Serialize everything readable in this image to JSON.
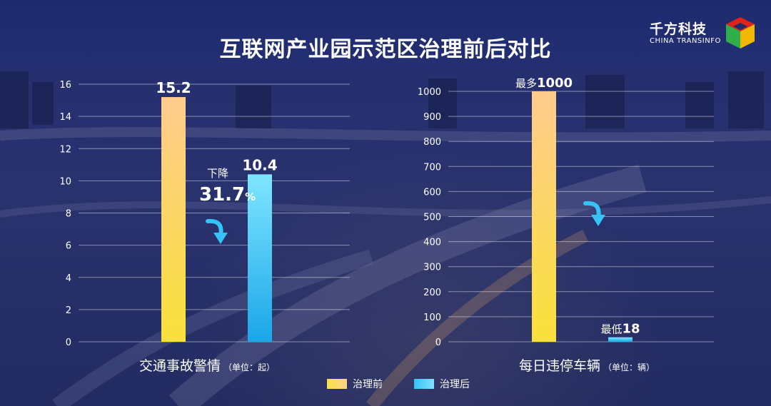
{
  "title": "互联网产业园示范区治理前后对比",
  "logo": {
    "cn": "千方科技",
    "en": "CHINA TRANSINFO"
  },
  "legend": [
    {
      "label": "治理前",
      "color": "#f9e04a"
    },
    {
      "label": "治理后",
      "color": "#35c4f5"
    }
  ],
  "chart_data": [
    {
      "type": "bar",
      "caption": "交通事故警情",
      "unit": "（单位：起）",
      "categories": [
        "治理前",
        "治理后"
      ],
      "values": [
        15.2,
        10.4
      ],
      "value_labels": [
        "15.2",
        "10.4"
      ],
      "ylim": [
        0,
        16
      ],
      "yticks": [
        0,
        2,
        4,
        6,
        8,
        10,
        12,
        14,
        16
      ],
      "grid": true,
      "annotation": {
        "label": "下降",
        "value": "31.7",
        "suffix": "%"
      }
    },
    {
      "type": "bar",
      "caption": "每日违停车辆",
      "unit": "（单位：辆）",
      "categories": [
        "治理前",
        "治理后"
      ],
      "values": [
        1000,
        18
      ],
      "value_labels": [
        "1000",
        "18"
      ],
      "value_prefixes": [
        "最多",
        "最低"
      ],
      "ylim": [
        0,
        1000
      ],
      "yticks": [
        0,
        100,
        200,
        300,
        400,
        500,
        600,
        700,
        800,
        900,
        1000
      ],
      "grid": true
    }
  ]
}
